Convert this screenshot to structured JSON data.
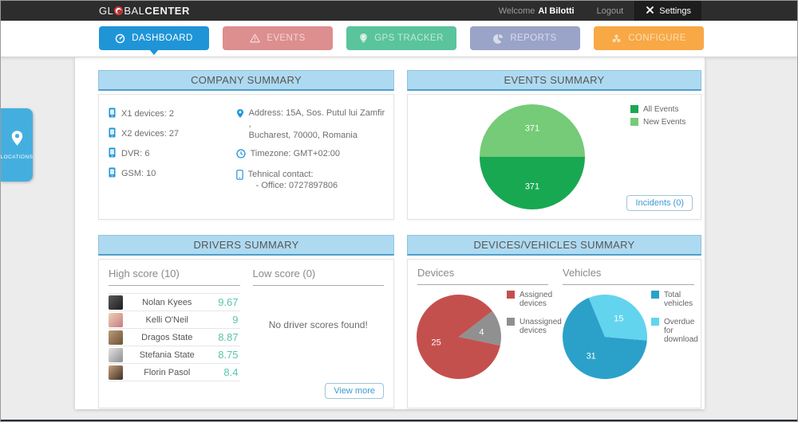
{
  "colors": {
    "accent_blue": "#1f95d8",
    "topbar_bg": "#2d2d2d",
    "panel_header_bg": "#aedaf1",
    "score_teal": "#58c5ad",
    "link_blue": "#3e9bd3"
  },
  "header": {
    "logo_pre": "GL",
    "logo_mid": "BAL",
    "logo_bold": "CENTER",
    "welcome_label": "Welcome",
    "username": "Al Bilotti",
    "logout_label": "Logout",
    "settings_label": "Settings"
  },
  "nav": {
    "active_id": "dashboard",
    "items": [
      {
        "id": "dashboard",
        "label": "DASHBOARD",
        "color": "#1f95d8",
        "icon": "dashboard-gauge-icon"
      },
      {
        "id": "events",
        "label": "EVENTS",
        "color": "#dd8e8e",
        "icon": "warning-triangle-icon"
      },
      {
        "id": "gps-tracker",
        "label": "GPS TRACKER",
        "color": "#5ac49c",
        "icon": "person-pin-icon"
      },
      {
        "id": "reports",
        "label": "REPORTS",
        "color": "#9aa3c8",
        "icon": "pie-chart-icon"
      },
      {
        "id": "configure",
        "label": "CONFIGURE",
        "color": "#f8a845",
        "icon": "cog-icon"
      }
    ]
  },
  "locations_tab": {
    "label": "LOCATIONS"
  },
  "panels": {
    "company": {
      "title": "COMPANY SUMMARY",
      "device_counts": [
        "X1 devices: 2",
        "X2 devices: 27",
        "DVR: 6",
        "GSM: 10"
      ],
      "address_line1": "Address: 15A, Sos. Putul lui Zamfir ,",
      "address_line2": "Bucharest, 70000, Romania",
      "timezone": "Timezone: GMT+02:00",
      "contact_line1": "Tehnical contact:",
      "contact_line2": "- Office: 0727897806"
    },
    "events": {
      "title": "EVENTS SUMMARY",
      "incidents_button": "Incidents (0)"
    },
    "drivers": {
      "title": "DRIVERS SUMMARY",
      "high_title": "High score (10)",
      "low_title": "Low score (0)",
      "rows": [
        {
          "name": "Nolan Kyees",
          "score": "9.67"
        },
        {
          "name": "Kelli O'Neil",
          "score": "9"
        },
        {
          "name": "Dragos State",
          "score": "8.87"
        },
        {
          "name": "Stefania State",
          "score": "8.75"
        },
        {
          "name": "Florin Pasol",
          "score": "8.4"
        }
      ],
      "empty_text": "No driver scores found!",
      "view_more_button": "View more"
    },
    "devices_vehicles": {
      "title": "DEVICES/VEHICLES SUMMARY",
      "devices_title": "Devices",
      "vehicles_title": "Vehicles"
    }
  },
  "chart_data": [
    {
      "id": "events-pie",
      "type": "pie",
      "title": "Events Summary",
      "slices": [
        {
          "label": "New Events",
          "value": 371,
          "color": "#75cb77"
        },
        {
          "label": "All Events",
          "value": 371,
          "color": "#18a852"
        }
      ],
      "legend": [
        {
          "label": "All Events",
          "color": "#18a852"
        },
        {
          "label": "New Events",
          "color": "#75cb77"
        }
      ],
      "legend_position": "top-right"
    },
    {
      "id": "devices-pie",
      "type": "pie",
      "title": "Devices",
      "slices": [
        {
          "label": "Assigned devices",
          "value": 25,
          "color": "#c4504d"
        },
        {
          "label": "Unassigned devices",
          "value": 4,
          "color": "#909090"
        }
      ],
      "legend": [
        {
          "label": "Assigned devices",
          "color": "#c4504d"
        },
        {
          "label": "Unassigned devices",
          "color": "#909090"
        }
      ],
      "legend_position": "right"
    },
    {
      "id": "vehicles-pie",
      "type": "pie",
      "title": "Vehicles",
      "slices": [
        {
          "label": "Total vehicles",
          "value": 31,
          "color": "#2ba1c9"
        },
        {
          "label": "Overdue for download",
          "value": 15,
          "color": "#63d4ee"
        }
      ],
      "legend": [
        {
          "label": "Total vehicles",
          "color": "#2ba1c9"
        },
        {
          "label": "Overdue for download",
          "color": "#63d4ee"
        }
      ],
      "legend_position": "right"
    }
  ]
}
